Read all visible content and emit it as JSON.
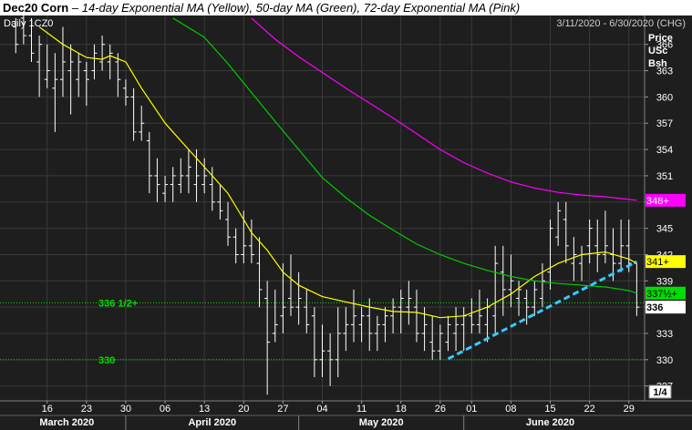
{
  "title": {
    "main": "Dec20 Corn",
    "separator": " – ",
    "subtitle": "14-day Exponential MA (Yellow), 50-day MA (Green), 72-day Exponential MA (Pink)"
  },
  "header": {
    "symbol": "Daily 1CZ0",
    "date_range": "3/11/2020 - 6/30/2020 (CHG)"
  },
  "axis": {
    "y_title": [
      "Price",
      "USc",
      "Bsh"
    ],
    "y_ticks": [
      366,
      363,
      360,
      357,
      354,
      351,
      348,
      345,
      342,
      339,
      336,
      333,
      330,
      327
    ],
    "x_day_ticks": [
      {
        "label": "16",
        "day": 5
      },
      {
        "label": "23",
        "day": 10
      },
      {
        "label": "30",
        "day": 15
      },
      {
        "label": "06",
        "day": 20
      },
      {
        "label": "13",
        "day": 25
      },
      {
        "label": "20",
        "day": 30
      },
      {
        "label": "27",
        "day": 35
      },
      {
        "label": "04",
        "day": 40
      },
      {
        "label": "11",
        "day": 45
      },
      {
        "label": "18",
        "day": 50
      },
      {
        "label": "26",
        "day": 55
      },
      {
        "label": "01",
        "day": 59
      },
      {
        "label": "08",
        "day": 64
      },
      {
        "label": "15",
        "day": 69
      },
      {
        "label": "22",
        "day": 74
      },
      {
        "label": "29",
        "day": 79
      }
    ],
    "x_months": [
      {
        "label": "March 2020",
        "start": 0,
        "end": 15
      },
      {
        "label": "April 2020",
        "start": 15,
        "end": 37
      },
      {
        "label": "May 2020",
        "start": 37,
        "end": 58
      },
      {
        "label": "June 2020",
        "start": 58,
        "end": 80
      }
    ],
    "x_divider_days": [
      15,
      37,
      58
    ],
    "pager": "1/4"
  },
  "reference_lines": [
    {
      "label": "336 1/2+",
      "value": 336.5,
      "color": "#00dd00"
    },
    {
      "label": "330",
      "value": 330,
      "color": "#00dd00"
    }
  ],
  "price_tags": [
    {
      "label": "348+",
      "value": 348.2,
      "bg": "#ff00ff",
      "fg": "#ffffff"
    },
    {
      "label": "341+",
      "value": 341.2,
      "bg": "#ffff00",
      "fg": "#000000"
    },
    {
      "label": "337½+",
      "value": 337.6,
      "bg": "#00dd00",
      "fg": "#000000"
    },
    {
      "label": "336",
      "value": 336.0,
      "bg": "#ffffff",
      "fg": "#000000"
    }
  ],
  "colors": {
    "background": "#1e1e1e",
    "bars": "#ffffff",
    "ema14": "#ffff00",
    "ma50": "#00cc00",
    "ema72": "#ff00ff",
    "trendline": "#33ccff",
    "grid": "#3a3a3a"
  },
  "chart_data": {
    "type": "line",
    "title": "Dec20 Corn",
    "ylabel": "Price USc Bsh",
    "ylim": [
      325.3,
      369.3
    ],
    "xlim": [
      -1,
      81
    ],
    "grid": true,
    "ohlc_bars": [
      {
        "day": 1,
        "high": 369,
        "low": 365,
        "open": 368,
        "close": 366
      },
      {
        "day": 2,
        "high": 370,
        "low": 366,
        "open": 369,
        "close": 367
      },
      {
        "day": 3,
        "high": 369,
        "low": 364,
        "open": 367,
        "close": 365
      },
      {
        "day": 4,
        "high": 367,
        "low": 360,
        "open": 364,
        "close": 366
      },
      {
        "day": 5,
        "high": 366,
        "low": 361,
        "open": 362,
        "close": 363
      },
      {
        "day": 6,
        "high": 365,
        "low": 356,
        "open": 361,
        "close": 362
      },
      {
        "day": 7,
        "high": 368,
        "low": 360,
        "open": 362,
        "close": 364
      },
      {
        "day": 8,
        "high": 366,
        "low": 358,
        "open": 363,
        "close": 364
      },
      {
        "day": 9,
        "high": 365,
        "low": 360,
        "open": 362,
        "close": 364
      },
      {
        "day": 10,
        "high": 364,
        "low": 359,
        "open": 363,
        "close": 362
      },
      {
        "day": 11,
        "high": 366,
        "low": 362,
        "open": 363,
        "close": 365
      },
      {
        "day": 12,
        "high": 367,
        "low": 363,
        "open": 364,
        "close": 366
      },
      {
        "day": 13,
        "high": 366,
        "low": 362,
        "open": 364,
        "close": 365
      },
      {
        "day": 14,
        "high": 365,
        "low": 360,
        "open": 364,
        "close": 362
      },
      {
        "day": 15,
        "high": 362,
        "low": 359,
        "open": 361,
        "close": 360
      },
      {
        "day": 16,
        "high": 361,
        "low": 355,
        "open": 360,
        "close": 356
      },
      {
        "day": 17,
        "high": 359,
        "low": 355,
        "open": 356,
        "close": 357
      },
      {
        "day": 18,
        "high": 356,
        "low": 349,
        "open": 355,
        "close": 351
      },
      {
        "day": 19,
        "high": 353,
        "low": 348,
        "open": 351,
        "close": 350
      },
      {
        "day": 20,
        "high": 351,
        "low": 348,
        "open": 349,
        "close": 350
      },
      {
        "day": 21,
        "high": 352,
        "low": 348,
        "open": 350,
        "close": 351
      },
      {
        "day": 22,
        "high": 353,
        "low": 349,
        "open": 350,
        "close": 351
      },
      {
        "day": 23,
        "high": 354,
        "low": 349,
        "open": 351,
        "close": 352
      },
      {
        "day": 24,
        "high": 354,
        "low": 348,
        "open": 350,
        "close": 351
      },
      {
        "day": 25,
        "high": 353,
        "low": 349,
        "open": 350,
        "close": 351
      },
      {
        "day": 26,
        "high": 352,
        "low": 347,
        "open": 350,
        "close": 348
      },
      {
        "day": 27,
        "high": 350,
        "low": 346,
        "open": 348,
        "close": 347
      },
      {
        "day": 28,
        "high": 348,
        "low": 343,
        "open": 346,
        "close": 344
      },
      {
        "day": 29,
        "high": 345,
        "low": 341,
        "open": 344,
        "close": 342
      },
      {
        "day": 30,
        "high": 347,
        "low": 341,
        "open": 342,
        "close": 343
      },
      {
        "day": 31,
        "high": 346,
        "low": 341,
        "open": 343,
        "close": 342
      },
      {
        "day": 32,
        "high": 344,
        "low": 336,
        "open": 341,
        "close": 338
      },
      {
        "day": 33,
        "high": 339,
        "low": 326,
        "open": 337,
        "close": 332
      },
      {
        "day": 34,
        "high": 338,
        "low": 332,
        "open": 333,
        "close": 334
      },
      {
        "day": 35,
        "high": 341,
        "low": 333,
        "open": 335,
        "close": 336
      },
      {
        "day": 36,
        "high": 342,
        "low": 335,
        "open": 337,
        "close": 336
      },
      {
        "day": 37,
        "high": 340,
        "low": 334,
        "open": 336,
        "close": 337
      },
      {
        "day": 38,
        "high": 338,
        "low": 333,
        "open": 336,
        "close": 334
      },
      {
        "day": 39,
        "high": 336,
        "low": 328,
        "open": 335,
        "close": 330
      },
      {
        "day": 40,
        "high": 334,
        "low": 328,
        "open": 330,
        "close": 331
      },
      {
        "day": 41,
        "high": 333,
        "low": 327,
        "open": 331,
        "close": 330
      },
      {
        "day": 42,
        "high": 336,
        "low": 328,
        "open": 330,
        "close": 333
      },
      {
        "day": 43,
        "high": 336,
        "low": 331,
        "open": 333,
        "close": 334
      },
      {
        "day": 44,
        "high": 338,
        "low": 332,
        "open": 334,
        "close": 335
      },
      {
        "day": 45,
        "high": 336,
        "low": 332,
        "open": 334,
        "close": 335
      },
      {
        "day": 46,
        "high": 337,
        "low": 331,
        "open": 335,
        "close": 333
      },
      {
        "day": 47,
        "high": 335,
        "low": 331,
        "open": 333,
        "close": 334
      },
      {
        "day": 48,
        "high": 336,
        "low": 332,
        "open": 334,
        "close": 335
      },
      {
        "day": 49,
        "high": 337,
        "low": 333,
        "open": 335,
        "close": 336
      },
      {
        "day": 50,
        "high": 338,
        "low": 333,
        "open": 336,
        "close": 337
      },
      {
        "day": 51,
        "high": 339,
        "low": 334,
        "open": 336,
        "close": 337
      },
      {
        "day": 52,
        "high": 338,
        "low": 332,
        "open": 336,
        "close": 333
      },
      {
        "day": 53,
        "high": 336,
        "low": 331,
        "open": 333,
        "close": 334
      },
      {
        "day": 54,
        "high": 335,
        "low": 330,
        "open": 332,
        "close": 331
      },
      {
        "day": 55,
        "high": 334,
        "low": 330,
        "open": 331,
        "close": 333
      },
      {
        "day": 56,
        "high": 335,
        "low": 331,
        "open": 332,
        "close": 334
      },
      {
        "day": 57,
        "high": 336,
        "low": 331,
        "open": 333,
        "close": 334
      },
      {
        "day": 58,
        "high": 336,
        "low": 331,
        "open": 334,
        "close": 335
      },
      {
        "day": 59,
        "high": 337,
        "low": 333,
        "open": 335,
        "close": 334
      },
      {
        "day": 60,
        "high": 338,
        "low": 333,
        "open": 334,
        "close": 335
      },
      {
        "day": 61,
        "high": 337,
        "low": 332,
        "open": 334,
        "close": 336
      },
      {
        "day": 62,
        "high": 343,
        "low": 333,
        "open": 335,
        "close": 341
      },
      {
        "day": 63,
        "high": 343,
        "low": 335,
        "open": 340,
        "close": 338
      },
      {
        "day": 64,
        "high": 342,
        "low": 336,
        "open": 338,
        "close": 339
      },
      {
        "day": 65,
        "high": 339,
        "low": 335,
        "open": 337,
        "close": 338
      },
      {
        "day": 66,
        "high": 338,
        "low": 334,
        "open": 337,
        "close": 336
      },
      {
        "day": 67,
        "high": 339,
        "low": 335,
        "open": 336,
        "close": 338
      },
      {
        "day": 68,
        "high": 341,
        "low": 336,
        "open": 337,
        "close": 339
      },
      {
        "day": 69,
        "high": 346,
        "low": 338,
        "open": 340,
        "close": 345
      },
      {
        "day": 70,
        "high": 348,
        "low": 343,
        "open": 344,
        "close": 347
      },
      {
        "day": 71,
        "high": 348,
        "low": 341,
        "open": 346,
        "close": 343
      },
      {
        "day": 72,
        "high": 344,
        "low": 339,
        "open": 341,
        "close": 342
      },
      {
        "day": 73,
        "high": 343,
        "low": 339,
        "open": 341,
        "close": 342
      },
      {
        "day": 74,
        "high": 346,
        "low": 341,
        "open": 343,
        "close": 345
      },
      {
        "day": 75,
        "high": 346,
        "low": 340,
        "open": 343,
        "close": 342
      },
      {
        "day": 76,
        "high": 347,
        "low": 341,
        "open": 342,
        "close": 343
      },
      {
        "day": 77,
        "high": 345,
        "low": 339,
        "open": 342,
        "close": 341
      },
      {
        "day": 78,
        "high": 346,
        "low": 340,
        "open": 341,
        "close": 343
      },
      {
        "day": 79,
        "high": 346,
        "low": 340,
        "open": 343,
        "close": 341
      },
      {
        "day": 80,
        "high": 341,
        "low": 335,
        "open": 341,
        "close": 336
      }
    ],
    "series": [
      {
        "color": "#ffff00",
        "points": [
          [
            4,
            368
          ],
          [
            7,
            366
          ],
          [
            10,
            364.5
          ],
          [
            12,
            364.3
          ],
          [
            13,
            364.7
          ],
          [
            15,
            364
          ],
          [
            17,
            361
          ],
          [
            20,
            357
          ],
          [
            23,
            354
          ],
          [
            26,
            351
          ],
          [
            28,
            349
          ],
          [
            30,
            346
          ],
          [
            31,
            344.5
          ],
          [
            33,
            342.5
          ],
          [
            35,
            340
          ],
          [
            37,
            338.5
          ],
          [
            40,
            337.2
          ],
          [
            43,
            336.6
          ],
          [
            46,
            336
          ],
          [
            49,
            335.5
          ],
          [
            52,
            335.4
          ],
          [
            55,
            334.8
          ],
          [
            58,
            335
          ],
          [
            61,
            336
          ],
          [
            64,
            337.5
          ],
          [
            67,
            339.5
          ],
          [
            70,
            341
          ],
          [
            73,
            342
          ],
          [
            76,
            342.3
          ],
          [
            79,
            341.5
          ],
          [
            80,
            341
          ]
        ]
      },
      {
        "color": "#00cc00",
        "points": [
          [
            21,
            369
          ],
          [
            25,
            366.8
          ],
          [
            28,
            363.8
          ],
          [
            31,
            360.5
          ],
          [
            34,
            357.2
          ],
          [
            37,
            354
          ],
          [
            40,
            350.8
          ],
          [
            43,
            348.5
          ],
          [
            46,
            346.5
          ],
          [
            49,
            344.8
          ],
          [
            52,
            343.2
          ],
          [
            55,
            342
          ],
          [
            58,
            341
          ],
          [
            61,
            340.2
          ],
          [
            64,
            339.5
          ],
          [
            67,
            339
          ],
          [
            70,
            338.7
          ],
          [
            73,
            338.5
          ],
          [
            76,
            338.3
          ],
          [
            79,
            337.9
          ],
          [
            80,
            337.6
          ]
        ]
      },
      {
        "color": "#ff00ff",
        "points": [
          [
            31,
            369
          ],
          [
            34,
            366.6
          ],
          [
            37,
            364.6
          ],
          [
            40,
            362.8
          ],
          [
            43,
            361
          ],
          [
            46,
            359.3
          ],
          [
            49,
            357.6
          ],
          [
            52,
            355.8
          ],
          [
            55,
            354
          ],
          [
            58,
            352.5
          ],
          [
            61,
            351.3
          ],
          [
            64,
            350.3
          ],
          [
            67,
            349.6
          ],
          [
            70,
            349.1
          ],
          [
            73,
            348.8
          ],
          [
            76,
            348.6
          ],
          [
            80,
            348.2
          ]
        ]
      }
    ],
    "trendline": {
      "color": "#33ccff",
      "points": [
        [
          56,
          330.1
        ],
        [
          80,
          341.2
        ]
      ]
    }
  }
}
